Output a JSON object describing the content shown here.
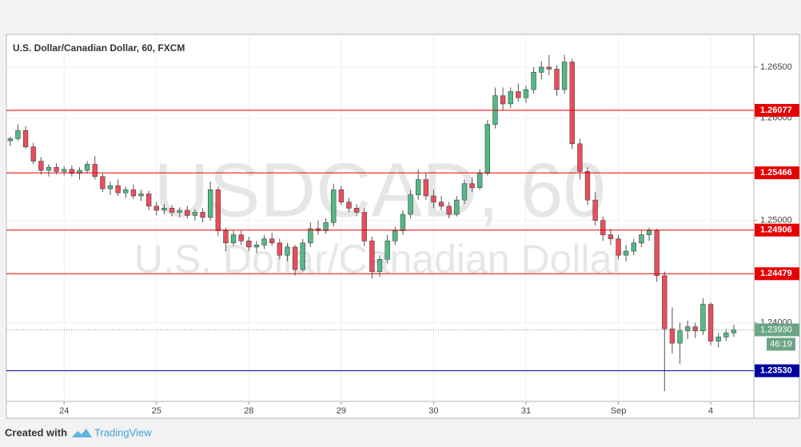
{
  "chart_data": {
    "type": "candlestick",
    "title": "U.S. Dollar/Canadian Dollar, 60, FXCM",
    "watermark": {
      "symbol": "USDCAD, 60",
      "description": "U.S. Dollar/Canadian Dollar"
    },
    "up_color": "#53b987",
    "down_color": "#eb4d5c",
    "candles": {
      "open": [
        1.2578,
        1.258,
        1.2588,
        1.2572,
        1.2558,
        1.2549,
        1.2552,
        1.2548,
        1.255,
        1.2546,
        1.2549,
        1.2555,
        1.2543,
        1.2531,
        1.2534,
        1.2527,
        1.253,
        1.2524,
        1.2526,
        1.2514,
        1.251,
        1.2512,
        1.2508,
        1.251,
        1.2505,
        1.2508,
        1.2503,
        1.253,
        1.249,
        1.2478,
        1.2486,
        1.248,
        1.2474,
        1.2476,
        1.2482,
        1.2478,
        1.2466,
        1.2474,
        1.2452,
        1.2478,
        1.2492,
        1.249,
        1.2498,
        1.253,
        1.2518,
        1.2512,
        1.2508,
        1.248,
        1.245,
        1.2462,
        1.248,
        1.249,
        1.2506,
        1.2525,
        1.254,
        1.2524,
        1.2518,
        1.2514,
        1.2506,
        1.252,
        1.2536,
        1.2532,
        1.2546,
        1.2594,
        1.2622,
        1.2614,
        1.2626,
        1.262,
        1.2628,
        1.2645,
        1.265,
        1.2648,
        1.2628,
        1.2655,
        1.2575,
        1.2548,
        1.252,
        1.25,
        1.2486,
        1.2482,
        1.2466,
        1.247,
        1.2478,
        1.2486,
        1.249,
        1.2446,
        1.2394,
        1.238,
        1.2392,
        1.2396,
        1.2392,
        1.2418,
        1.2382,
        1.2386,
        1.239
      ],
      "high": [
        1.2582,
        1.2594,
        1.2592,
        1.2576,
        1.2562,
        1.2555,
        1.2556,
        1.2553,
        1.2554,
        1.2552,
        1.2558,
        1.2563,
        1.2546,
        1.2538,
        1.254,
        1.2533,
        1.2535,
        1.253,
        1.2529,
        1.2518,
        1.2516,
        1.2515,
        1.2513,
        1.2514,
        1.2511,
        1.2512,
        1.2538,
        1.2533,
        1.2493,
        1.249,
        1.249,
        1.2484,
        1.248,
        1.2486,
        1.2488,
        1.2482,
        1.2478,
        1.2476,
        1.2482,
        1.2498,
        1.25,
        1.2502,
        1.2536,
        1.2534,
        1.2522,
        1.2516,
        1.2512,
        1.2484,
        1.2466,
        1.2486,
        1.2494,
        1.251,
        1.253,
        1.255,
        1.2546,
        1.253,
        1.2524,
        1.2518,
        1.2524,
        1.254,
        1.2542,
        1.255,
        1.2598,
        1.263,
        1.263,
        1.263,
        1.2634,
        1.2632,
        1.265,
        1.2656,
        1.2662,
        1.2652,
        1.2662,
        1.2658,
        1.258,
        1.2552,
        1.2528,
        1.2504,
        1.2492,
        1.2486,
        1.2476,
        1.2482,
        1.249,
        1.2493,
        1.2492,
        1.245,
        1.2415,
        1.24,
        1.2402,
        1.24,
        1.2424,
        1.242,
        1.239,
        1.2394,
        1.2398
      ],
      "low": [
        1.2573,
        1.2578,
        1.257,
        1.2555,
        1.2545,
        1.2543,
        1.2545,
        1.2544,
        1.2543,
        1.254,
        1.2546,
        1.254,
        1.2528,
        1.2525,
        1.2524,
        1.2522,
        1.2521,
        1.2519,
        1.251,
        1.2505,
        1.2506,
        1.2504,
        1.2503,
        1.2502,
        1.25,
        1.2498,
        1.25,
        1.2485,
        1.247,
        1.2475,
        1.2476,
        1.247,
        1.2468,
        1.2472,
        1.2475,
        1.2462,
        1.246,
        1.2446,
        1.245,
        1.2474,
        1.2486,
        1.2487,
        1.2494,
        1.2515,
        1.2508,
        1.2504,
        1.2475,
        1.2443,
        1.2445,
        1.2458,
        1.2476,
        1.2486,
        1.2502,
        1.252,
        1.252,
        1.2512,
        1.251,
        1.2502,
        1.2504,
        1.2516,
        1.2528,
        1.253,
        1.2544,
        1.259,
        1.2608,
        1.261,
        1.2616,
        1.2615,
        1.2624,
        1.2638,
        1.2642,
        1.2622,
        1.2624,
        1.257,
        1.254,
        1.2515,
        1.2495,
        1.248,
        1.2476,
        1.2462,
        1.246,
        1.2466,
        1.2474,
        1.248,
        1.244,
        1.2333,
        1.237,
        1.236,
        1.2384,
        1.2385,
        1.2388,
        1.2378,
        1.2376,
        1.2382,
        1.2386
      ],
      "close": [
        1.258,
        1.2588,
        1.2572,
        1.2558,
        1.2549,
        1.2552,
        1.2548,
        1.255,
        1.2546,
        1.2549,
        1.2555,
        1.2543,
        1.2531,
        1.2534,
        1.2527,
        1.253,
        1.2524,
        1.2526,
        1.2514,
        1.251,
        1.2512,
        1.2508,
        1.251,
        1.2505,
        1.2508,
        1.2503,
        1.253,
        1.249,
        1.2478,
        1.2486,
        1.248,
        1.2474,
        1.2476,
        1.2482,
        1.2478,
        1.2466,
        1.2474,
        1.2452,
        1.2478,
        1.2492,
        1.249,
        1.2498,
        1.253,
        1.2518,
        1.2512,
        1.2508,
        1.248,
        1.245,
        1.2462,
        1.248,
        1.249,
        1.2506,
        1.2525,
        1.254,
        1.2524,
        1.2518,
        1.2514,
        1.2506,
        1.252,
        1.2536,
        1.2532,
        1.2546,
        1.2594,
        1.2622,
        1.2614,
        1.2626,
        1.262,
        1.2628,
        1.2645,
        1.265,
        1.2648,
        1.2628,
        1.2655,
        1.2575,
        1.2548,
        1.252,
        1.25,
        1.2486,
        1.2482,
        1.2466,
        1.247,
        1.2478,
        1.2486,
        1.249,
        1.2446,
        1.2394,
        1.238,
        1.2392,
        1.2396,
        1.2392,
        1.2418,
        1.2382,
        1.2386,
        1.239,
        1.2393
      ]
    },
    "xlim": [
      -0.5,
      96.6
    ],
    "xticks": [
      {
        "value": 7,
        "label": "24"
      },
      {
        "value": 19,
        "label": "25"
      },
      {
        "value": 31,
        "label": "28"
      },
      {
        "value": 43,
        "label": "29"
      },
      {
        "value": 55,
        "label": "30"
      },
      {
        "value": 67,
        "label": "31"
      },
      {
        "value": 79,
        "label": "Sep"
      },
      {
        "value": 91,
        "label": "4"
      }
    ],
    "ylim": [
      1.2323,
      1.2682
    ],
    "yticks": [
      {
        "value": 1.265,
        "label": "1.26500"
      },
      {
        "value": 1.26,
        "label": "1.26000"
      },
      {
        "value": 1.25,
        "label": "1.25000"
      },
      {
        "value": 1.24,
        "label": "1.24000"
      }
    ],
    "grid": true,
    "levels": [
      {
        "value": 1.26077,
        "label": "1.26077",
        "color": "#e60000"
      },
      {
        "value": 1.25466,
        "label": "1.25466",
        "color": "#e60000"
      },
      {
        "value": 1.24906,
        "label": "1.24906",
        "color": "#e60000"
      },
      {
        "value": 1.24479,
        "label": "1.24479",
        "color": "#e60000"
      },
      {
        "value": 1.2353,
        "label": "1.23530",
        "color": "#0000a0"
      }
    ],
    "last_price": {
      "value": 1.2393,
      "label": "1.23930",
      "countdown": "46:19",
      "color": "#6ba583"
    }
  },
  "footer": {
    "created": "Created with",
    "brand": "TradingView"
  }
}
